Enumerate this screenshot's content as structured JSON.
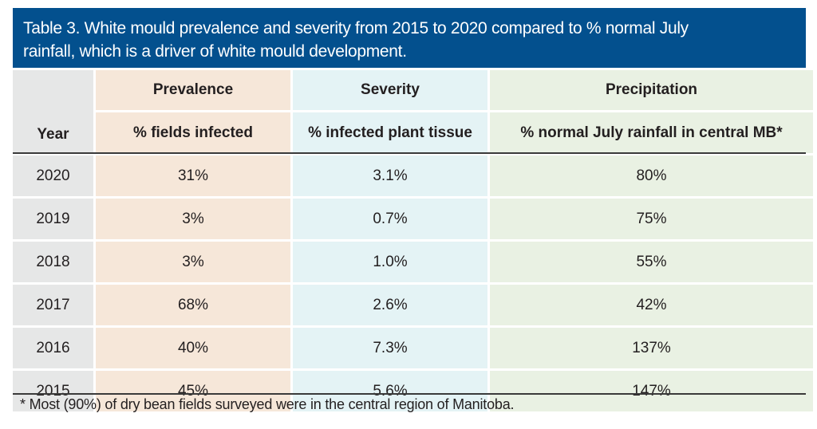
{
  "title": "Table 3. White mould prevalence and severity from 2015 to 2020 compared to % normal July rainfall, which is a driver of white mould development.",
  "title_lines": [
    "Table 3. White mould prevalence and severity from 2015 to 2020 compared to % normal July",
    "rainfall, which is a driver of white mould development."
  ],
  "colors": {
    "title_band": "#03508e",
    "year_column": "#e6e7e7",
    "prevalence_column": "#f6e7d9",
    "severity_column": "#e4f3f5",
    "precipitation_column": "#e9f1e3"
  },
  "header": {
    "year": "Year",
    "groups": [
      "Prevalence",
      "Severity",
      "Precipitation"
    ],
    "subheaders": [
      "% fields infected",
      "% infected plant tissue",
      "% normal July rainfall in central MB*"
    ]
  },
  "rows": [
    {
      "year": "2020",
      "prevalence": "31%",
      "severity": "3.1%",
      "precipitation": "80%"
    },
    {
      "year": "2019",
      "prevalence": "3%",
      "severity": "0.7%",
      "precipitation": "75%"
    },
    {
      "year": "2018",
      "prevalence": "3%",
      "severity": "1.0%",
      "precipitation": "55%"
    },
    {
      "year": "2017",
      "prevalence": "68%",
      "severity": "2.6%",
      "precipitation": "42%"
    },
    {
      "year": "2016",
      "prevalence": "40%",
      "severity": "7.3%",
      "precipitation": "137%"
    },
    {
      "year": "2015",
      "prevalence": "45%",
      "severity": "5.6%",
      "precipitation": "147%"
    }
  ],
  "footnote": "* Most (90%) of dry bean fields surveyed were in the central region of Manitoba."
}
